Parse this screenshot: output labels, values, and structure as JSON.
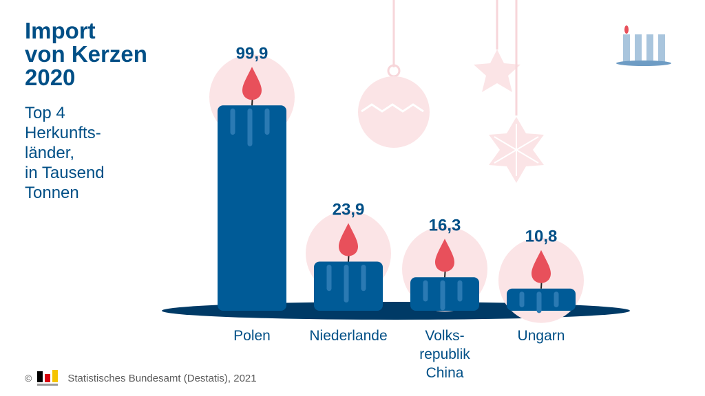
{
  "title": [
    "Import",
    "von Kerzen",
    "2020"
  ],
  "subtitle": [
    "Top 4",
    "Herkunfts-",
    "länder,",
    "in Tausend",
    "Tonnen"
  ],
  "footer": {
    "copyright_symbol": "©",
    "source": "Statistisches Bundesamt (Destatis), 2021"
  },
  "colors": {
    "candle": "#005b97",
    "candle_drip": "#2b7ab3",
    "flame": "#e8505b",
    "glow": "#fbe4e6",
    "base": "#003a66",
    "text": "#004f86",
    "ornament": "#f7d6da"
  },
  "chart_data": {
    "type": "bar",
    "categories": [
      [
        "Polen"
      ],
      [
        "Niederlande"
      ],
      [
        "Volks-",
        "republik",
        "China"
      ],
      [
        "Ungarn"
      ]
    ],
    "values": [
      99.9,
      23.9,
      16.3,
      10.8
    ],
    "value_labels": [
      "99,9",
      "23,9",
      "16,3",
      "10,8"
    ],
    "ylim": [
      0,
      100
    ],
    "legend": "none",
    "grid": false
  }
}
